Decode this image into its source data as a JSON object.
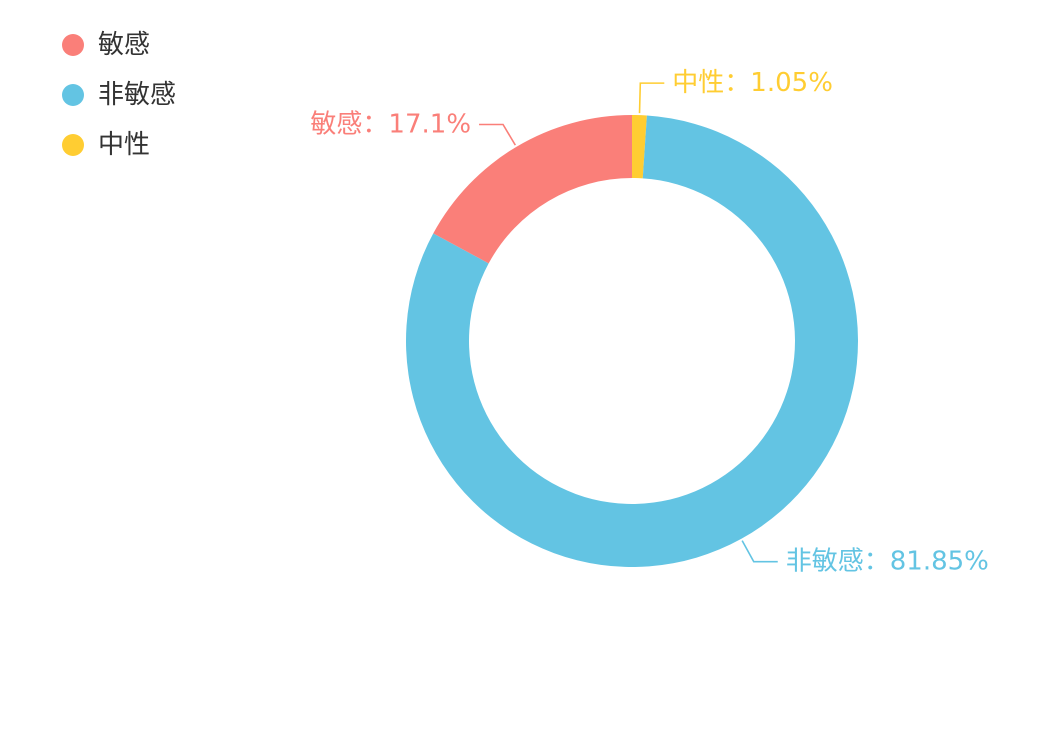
{
  "chart_data": {
    "type": "pie",
    "variant": "donut",
    "title": "",
    "legend_position": "top-left",
    "slices": [
      {
        "name": "中性",
        "value": 1.05,
        "label": "中性：1.05%",
        "color": "#ffcd32"
      },
      {
        "name": "非敏感",
        "value": 81.85,
        "label": "非敏感：81.85%",
        "color": "#63c4e3"
      },
      {
        "name": "敏感",
        "value": 17.1,
        "label": "敏感：17.1%",
        "color": "#fa7f79"
      }
    ],
    "legend": [
      {
        "name": "敏感",
        "color": "#fa7f79"
      },
      {
        "name": "非敏感",
        "color": "#63c4e3"
      },
      {
        "name": "中性",
        "color": "#ffcd32"
      }
    ]
  }
}
